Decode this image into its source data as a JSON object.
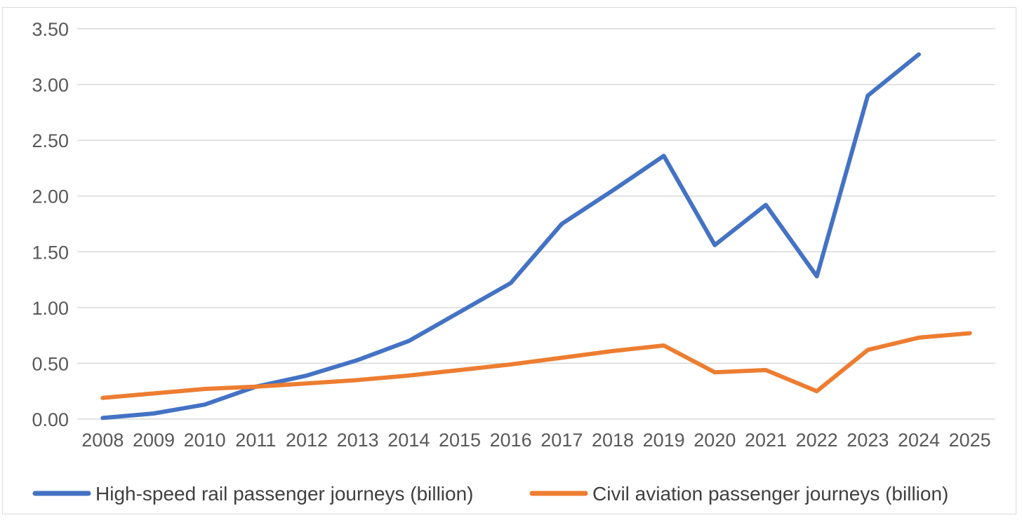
{
  "chart_data": {
    "type": "line",
    "x": [
      "2008",
      "2009",
      "2010",
      "2011",
      "2012",
      "2013",
      "2014",
      "2015",
      "2016",
      "2017",
      "2018",
      "2019",
      "2020",
      "2021",
      "2022",
      "2023",
      "2024",
      "2025"
    ],
    "ylim": [
      0,
      3.5
    ],
    "yticks": [
      "0.00",
      "0.50",
      "1.00",
      "1.50",
      "2.00",
      "2.50",
      "3.00",
      "3.50"
    ],
    "grid": true,
    "legend_position": "bottom",
    "series": [
      {
        "name": "High-speed rail passenger journeys (billion)",
        "color": "#4472c4",
        "values": [
          0.01,
          0.05,
          0.13,
          0.29,
          0.39,
          0.53,
          0.7,
          0.96,
          1.22,
          1.75,
          2.05,
          2.36,
          1.56,
          1.92,
          1.28,
          2.9,
          3.27,
          null
        ]
      },
      {
        "name": "Civil aviation passenger journeys (billion)",
        "color": "#ed7d31",
        "values": [
          0.19,
          0.23,
          0.27,
          0.29,
          0.32,
          0.35,
          0.39,
          0.44,
          0.49,
          0.55,
          0.61,
          0.66,
          0.42,
          0.44,
          0.25,
          0.62,
          0.73,
          0.77
        ]
      }
    ]
  }
}
